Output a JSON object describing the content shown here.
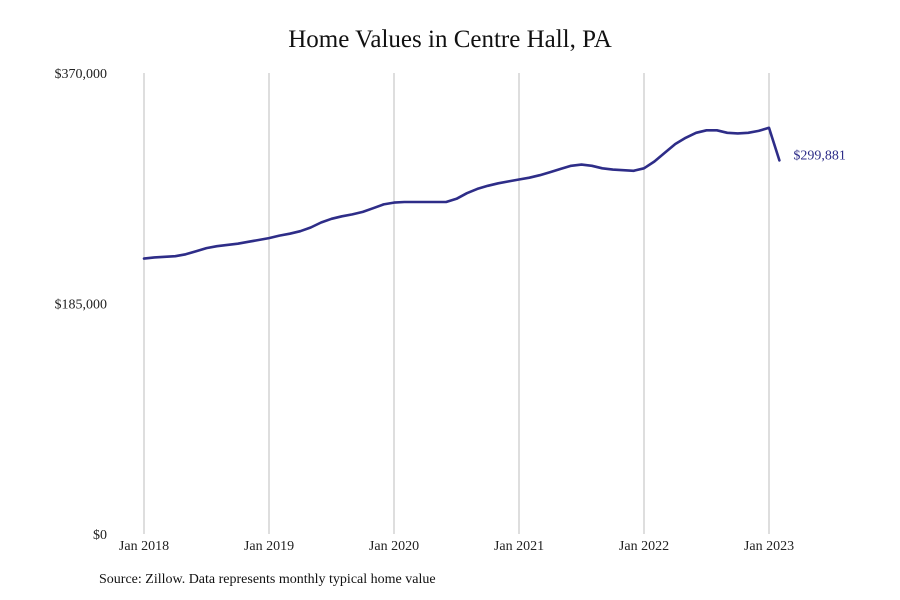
{
  "chart_data": {
    "type": "line",
    "title": "Home Values in Centre Hall, PA",
    "source": "Source: Zillow. Data represents monthly typical home value",
    "ylim": [
      0,
      370000
    ],
    "yticks": [
      {
        "value": 0,
        "label": "$0"
      },
      {
        "value": 185000,
        "label": "$185,000"
      },
      {
        "value": 370000,
        "label": "$370,000"
      }
    ],
    "xticks": [
      {
        "value": "2018-01",
        "label": "Jan 2018"
      },
      {
        "value": "2019-01",
        "label": "Jan 2019"
      },
      {
        "value": "2020-01",
        "label": "Jan 2020"
      },
      {
        "value": "2021-01",
        "label": "Jan 2021"
      },
      {
        "value": "2022-01",
        "label": "Jan 2022"
      },
      {
        "value": "2023-01",
        "label": "Jan 2023"
      }
    ],
    "grid": {
      "vertical": true,
      "horizontal": false
    },
    "line_color": "#2e2d88",
    "end_label": "$299,881",
    "series": [
      {
        "x": [
          "2018-01",
          "2018-02",
          "2018-03",
          "2018-04",
          "2018-05",
          "2018-06",
          "2018-07",
          "2018-08",
          "2018-09",
          "2018-10",
          "2018-11",
          "2018-12",
          "2019-01",
          "2019-02",
          "2019-03",
          "2019-04",
          "2019-05",
          "2019-06",
          "2019-07",
          "2019-08",
          "2019-09",
          "2019-10",
          "2019-11",
          "2019-12",
          "2020-01",
          "2020-02",
          "2020-03",
          "2020-04",
          "2020-05",
          "2020-06",
          "2020-07",
          "2020-08",
          "2020-09",
          "2020-10",
          "2020-11",
          "2020-12",
          "2021-01",
          "2021-02",
          "2021-03",
          "2021-04",
          "2021-05",
          "2021-06",
          "2021-07",
          "2021-08",
          "2021-09",
          "2021-10",
          "2021-11",
          "2021-12",
          "2022-01",
          "2022-02",
          "2022-03",
          "2022-04",
          "2022-05",
          "2022-06",
          "2022-07",
          "2022-08",
          "2022-09",
          "2022-10",
          "2022-11",
          "2022-12",
          "2023-01",
          "2023-02"
        ],
        "values": [
          221000,
          222000,
          222500,
          223000,
          224500,
          227000,
          229500,
          231000,
          232000,
          233000,
          234500,
          236000,
          237500,
          239500,
          241000,
          243000,
          246000,
          250000,
          253000,
          255000,
          256500,
          258500,
          261500,
          264500,
          266000,
          266500,
          266500,
          266500,
          266500,
          266500,
          269000,
          273500,
          277000,
          279500,
          281500,
          283000,
          284500,
          286000,
          288000,
          290500,
          293000,
          295500,
          296500,
          295500,
          293500,
          292500,
          292000,
          291500,
          293500,
          299000,
          306000,
          313000,
          318000,
          322000,
          324000,
          324000,
          322000,
          321500,
          322000,
          323500,
          326000,
          299881
        ]
      }
    ]
  }
}
